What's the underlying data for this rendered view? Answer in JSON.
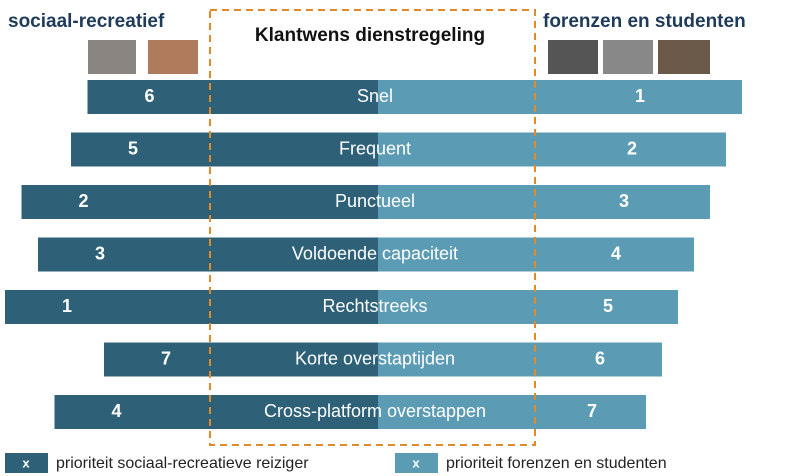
{
  "header": {
    "left": "sociaal-recreatief",
    "center": "Klantwens dienstregeling",
    "right": "forenzen en studenten"
  },
  "rows": [
    {
      "label": "Snel",
      "left": 6,
      "right": 1
    },
    {
      "label": "Frequent",
      "left": 5,
      "right": 2
    },
    {
      "label": "Punctueel",
      "left": 2,
      "right": 3
    },
    {
      "label": "Voldoende capaciteit",
      "left": 3,
      "right": 4
    },
    {
      "label": "Rechtstreeks",
      "left": 1,
      "right": 5
    },
    {
      "label": "Korte overstaptijden",
      "left": 7,
      "right": 6
    },
    {
      "label": "Cross-platform overstappen",
      "left": 4,
      "right": 7
    }
  ],
  "legend": [
    {
      "marker": "x",
      "text": "prioriteit sociaal-recreatieve reiziger"
    },
    {
      "marker": "x",
      "text": "prioriteit forenzen en studenten"
    }
  ]
}
